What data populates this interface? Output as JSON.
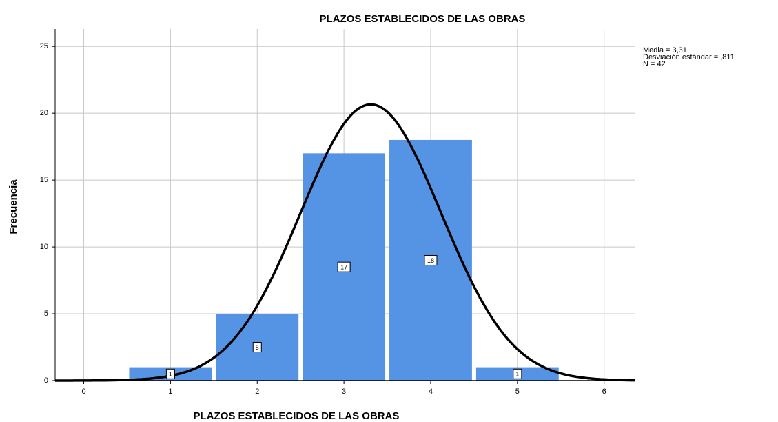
{
  "chart_data": {
    "type": "histogram",
    "title": "PLAZOS ESTABLECIDOS DE LAS OBRAS",
    "x_label": "PLAZOS ESTABLECIDOS DE LAS OBRAS",
    "y_label": "Frecuencia",
    "bins": [
      0.5,
      1.5,
      2.5,
      3.5,
      4.5,
      5.5
    ],
    "values": [
      1,
      5,
      17,
      18,
      1
    ],
    "color": "#5593e4",
    "xlim": [
      -0.33,
      6.36
    ],
    "xticks": [
      0,
      1,
      2,
      3,
      4,
      5,
      6
    ],
    "ylim": [
      0,
      26.3
    ],
    "yticks": [
      0,
      5,
      10,
      15,
      20,
      25
    ],
    "grid": true,
    "annotations": [
      "Media = 3,31",
      "Desviación estándar = ,811",
      "N = 42"
    ],
    "normal_curve": {
      "mean": 3.31,
      "sd": 0.811,
      "n": 42,
      "color": "#000000"
    }
  }
}
